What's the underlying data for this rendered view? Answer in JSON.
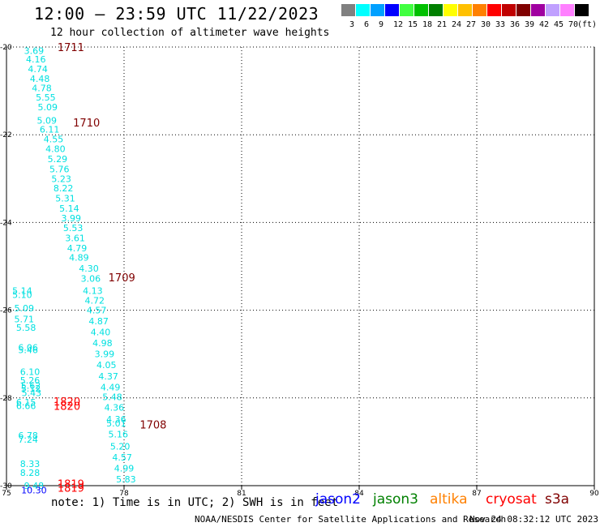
{
  "header": {
    "title": "12:00 – 23:59 UTC 11/22/2023",
    "subtitle": "12 hour collection of altimeter wave heights"
  },
  "legend": {
    "colors": [
      "#808080",
      "#00ffff",
      "#00a0ff",
      "#0000ff",
      "#40ff40",
      "#00c000",
      "#008000",
      "#ffff00",
      "#ffc000",
      "#ff8000",
      "#ff0000",
      "#c00000",
      "#800000",
      "#a000a0",
      "#c0a0ff",
      "#ff80ff",
      "#000000"
    ],
    "labels": [
      "3",
      "6",
      "9",
      "12",
      "15",
      "18",
      "21",
      "24",
      "27",
      "30",
      "33",
      "36",
      "39",
      "42",
      "45",
      "70",
      "(ft)"
    ]
  },
  "footer": {
    "note": "note: 1) Time is in UTC; 2) SWH is in feet",
    "credit": "NOAA/NESDIS Center for Satellite Applications and Research",
    "timestamp": "Nov 24 08:32:12 UTC 2023"
  },
  "satellites": [
    {
      "name": "jason2",
      "color": "#0000ff"
    },
    {
      "name": "jason3",
      "color": "#008000"
    },
    {
      "name": "altika",
      "color": "#ff8000"
    },
    {
      "name": "cryosat",
      "color": "#ff0000"
    },
    {
      "name": "s3a",
      "color": "#800000"
    }
  ],
  "chart_data": {
    "type": "scatter",
    "xlim": [
      75,
      90
    ],
    "ylim": [
      -30,
      -20
    ],
    "x_ticks": [
      "75",
      "78",
      "81",
      "84",
      "87",
      "90"
    ],
    "y_ticks": [
      "-30",
      "-28",
      "-26",
      "-24",
      "-22",
      "-20"
    ],
    "grid": true,
    "series": [
      {
        "name": "",
        "color": "#00e0e0",
        "points": [
          {
            "x": 75.7,
            "y": -20.08,
            "label": "3.69"
          },
          {
            "x": 75.75,
            "y": -20.28,
            "label": "4.16"
          },
          {
            "x": 75.8,
            "y": -20.5,
            "label": "4.74"
          },
          {
            "x": 75.85,
            "y": -20.72,
            "label": "4.48"
          },
          {
            "x": 75.9,
            "y": -20.93,
            "label": "4.78"
          },
          {
            "x": 76.0,
            "y": -21.15,
            "label": "5.55"
          },
          {
            "x": 76.05,
            "y": -21.37,
            "label": "5.09"
          },
          {
            "x": 76.03,
            "y": -21.67,
            "label": "5.09"
          },
          {
            "x": 76.1,
            "y": -21.88,
            "label": "6.11"
          },
          {
            "x": 76.2,
            "y": -22.1,
            "label": "4.55"
          },
          {
            "x": 76.25,
            "y": -22.32,
            "label": "4.80"
          },
          {
            "x": 76.3,
            "y": -22.55,
            "label": "5.29"
          },
          {
            "x": 76.35,
            "y": -22.78,
            "label": "5.76"
          },
          {
            "x": 76.4,
            "y": -23.0,
            "label": "5.23"
          },
          {
            "x": 76.45,
            "y": -23.22,
            "label": "8.22"
          },
          {
            "x": 76.5,
            "y": -23.45,
            "label": "5.31"
          },
          {
            "x": 76.6,
            "y": -23.68,
            "label": "5.14"
          },
          {
            "x": 76.65,
            "y": -23.9,
            "label": "3.99"
          },
          {
            "x": 76.7,
            "y": -24.12,
            "label": "5.53"
          },
          {
            "x": 76.75,
            "y": -24.35,
            "label": "3.61"
          },
          {
            "x": 76.8,
            "y": -24.58,
            "label": "4.79"
          },
          {
            "x": 76.85,
            "y": -24.8,
            "label": "4.89"
          },
          {
            "x": 77.1,
            "y": -25.05,
            "label": "4.30"
          },
          {
            "x": 77.15,
            "y": -25.28,
            "label": "3.06"
          },
          {
            "x": 77.2,
            "y": -25.55,
            "label": "4.13"
          },
          {
            "x": 77.25,
            "y": -25.78,
            "label": "4.72"
          },
          {
            "x": 77.3,
            "y": -26.0,
            "label": "4.57"
          },
          {
            "x": 77.35,
            "y": -26.25,
            "label": "4.87"
          },
          {
            "x": 77.4,
            "y": -26.5,
            "label": "4.40"
          },
          {
            "x": 77.45,
            "y": -26.75,
            "label": "4.98"
          },
          {
            "x": 77.5,
            "y": -27.0,
            "label": "3.99"
          },
          {
            "x": 77.55,
            "y": -27.25,
            "label": "4.05"
          },
          {
            "x": 77.6,
            "y": -27.5,
            "label": "4.37"
          },
          {
            "x": 77.65,
            "y": -27.75,
            "label": "4.49"
          },
          {
            "x": 77.7,
            "y": -27.98,
            "label": "5.48"
          },
          {
            "x": 77.75,
            "y": -28.22,
            "label": "4.36"
          },
          {
            "x": 77.8,
            "y": -28.48,
            "label": "4.36"
          },
          {
            "x": 77.8,
            "y": -28.58,
            "label": "5.01"
          },
          {
            "x": 77.85,
            "y": -28.83,
            "label": "5.16"
          },
          {
            "x": 77.9,
            "y": -29.1,
            "label": "5.20"
          },
          {
            "x": 77.95,
            "y": -29.35,
            "label": "4.57"
          },
          {
            "x": 78.0,
            "y": -29.6,
            "label": "4.99"
          },
          {
            "x": 78.05,
            "y": -29.85,
            "label": "5.83"
          },
          {
            "x": 75.4,
            "y": -25.55,
            "label": "5.14"
          },
          {
            "x": 75.4,
            "y": -25.65,
            "label": "5.10"
          },
          {
            "x": 75.45,
            "y": -25.95,
            "label": "5.09"
          },
          {
            "x": 75.45,
            "y": -26.2,
            "label": "5.71"
          },
          {
            "x": 75.5,
            "y": -26.4,
            "label": "5.58"
          },
          {
            "x": 75.55,
            "y": -26.85,
            "label": "6.06"
          },
          {
            "x": 75.55,
            "y": -26.9,
            "label": "5.46"
          },
          {
            "x": 75.6,
            "y": -27.4,
            "label": "6.10"
          },
          {
            "x": 75.6,
            "y": -27.6,
            "label": "5.26"
          },
          {
            "x": 75.62,
            "y": -27.72,
            "label": "5.62"
          },
          {
            "x": 75.62,
            "y": -27.78,
            "label": "5.12"
          },
          {
            "x": 75.64,
            "y": -27.88,
            "label": "5.43"
          },
          {
            "x": 75.5,
            "y": -28.1,
            "label": "6.15"
          },
          {
            "x": 75.5,
            "y": -28.18,
            "label": "6.66"
          },
          {
            "x": 75.55,
            "y": -28.85,
            "label": "6.78"
          },
          {
            "x": 75.55,
            "y": -28.95,
            "label": "7.24"
          },
          {
            "x": 75.6,
            "y": -29.5,
            "label": "8.33"
          },
          {
            "x": 75.6,
            "y": -29.7,
            "label": "8.28"
          },
          {
            "x": 75.7,
            "y": -30.0,
            "label": "9.48"
          }
        ]
      },
      {
        "name": "",
        "color": "#0000ff",
        "points": [
          {
            "x": 75.7,
            "y": -30.1,
            "label": "10.30"
          }
        ]
      }
    ],
    "annotations": [
      {
        "x": 76.3,
        "y": -20.0,
        "text": "1711",
        "color": "#800000"
      },
      {
        "x": 76.7,
        "y": -21.72,
        "text": "1710",
        "color": "#800000"
      },
      {
        "x": 77.6,
        "y": -25.25,
        "text": "1709",
        "color": "#800000"
      },
      {
        "x": 78.4,
        "y": -28.6,
        "text": "1708",
        "color": "#800000"
      },
      {
        "x": 76.2,
        "y": -28.08,
        "text": "1820",
        "color": "#ff0000"
      },
      {
        "x": 76.2,
        "y": -28.18,
        "text": "1820",
        "color": "#ff0000"
      },
      {
        "x": 76.3,
        "y": -29.95,
        "text": "1819",
        "color": "#ff0000"
      },
      {
        "x": 76.3,
        "y": -30.05,
        "text": "1819",
        "color": "#ff0000"
      }
    ]
  }
}
